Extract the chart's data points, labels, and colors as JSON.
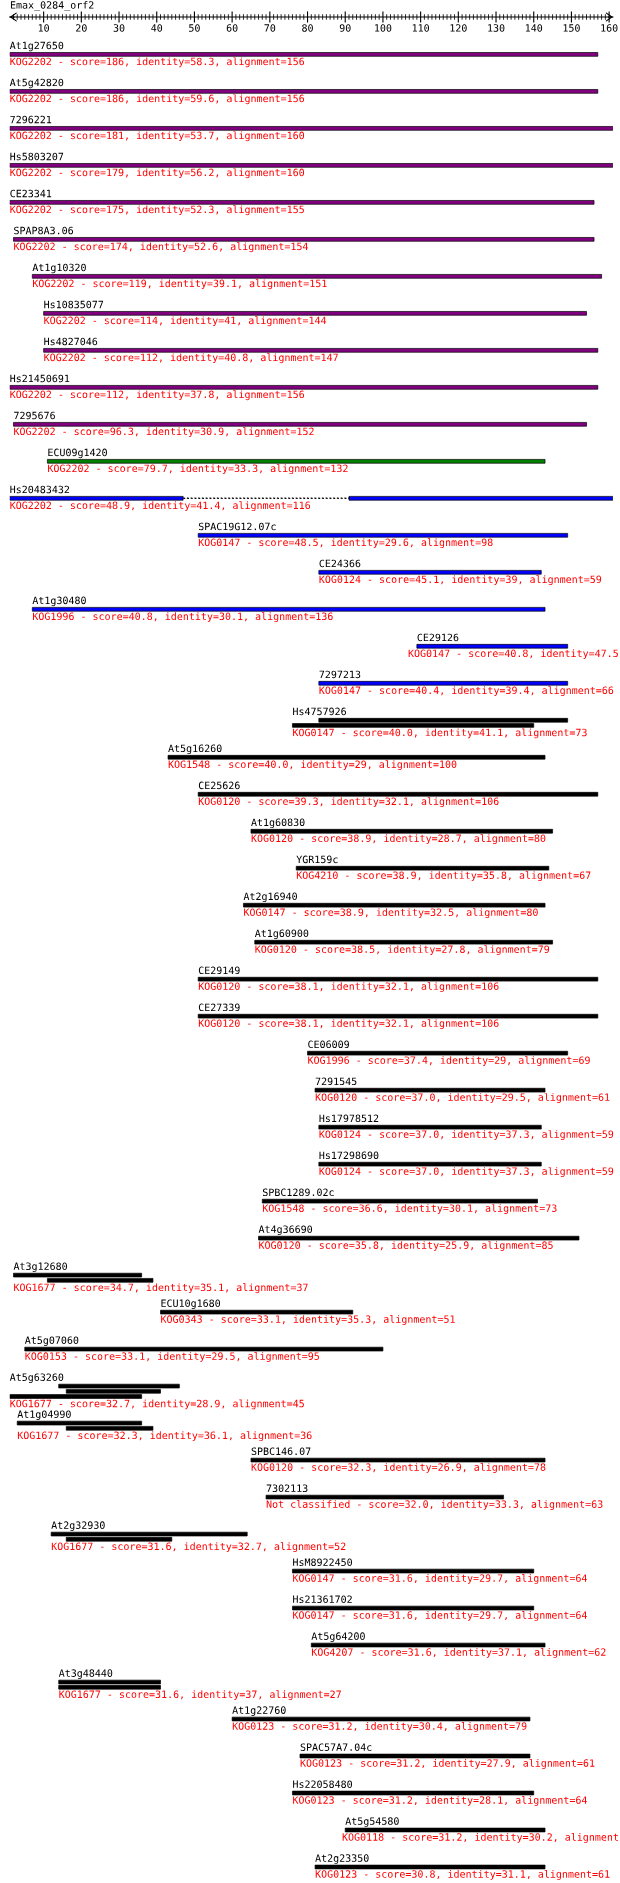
{
  "chart_data": {
    "type": "bar",
    "orientation": "horizontal",
    "title": "Emax_0284_orf2",
    "categories": [
      "At1g27650",
      "At5g42820",
      "7296221",
      "Hs5803207",
      "CE23341",
      "SPAP8A3.06",
      "At1g10320",
      "Hs10835077",
      "Hs4827046",
      "Hs21450691",
      "7295676",
      "ECU09g1420",
      "Hs20483432",
      "SPAC19G12.07c",
      "CE24366",
      "At1g30480",
      "CE29126",
      "7297213",
      "Hs4757926",
      "At5g16260",
      "CE25626",
      "At1g60830",
      "YGR159c",
      "At2g16940",
      "At1g60900",
      "CE29149",
      "CE27339",
      "CE06009",
      "7291545",
      "Hs17978512",
      "Hs17298690",
      "SPBC1289.02c",
      "At4g36690",
      "At3g12680",
      "ECU10g1680",
      "At5g07060",
      "At5g63260",
      "At1g04990",
      "SPBC146.07",
      "7302113",
      "At2g32930",
      "HsM8922450",
      "Hs21361702",
      "At5g64200",
      "At3g48440",
      "At1g22760",
      "SPAC57A7.04c",
      "Hs22058480",
      "At5g54580",
      "At2g23350"
    ],
    "xlim": [
      1,
      161
    ],
    "xticks": [
      {
        "value": 2,
        "label": null
      },
      {
        "value": 3,
        "label": null
      },
      {
        "value": 4,
        "label": null
      },
      {
        "value": 5,
        "label": null
      },
      {
        "value": 6,
        "label": null
      },
      {
        "value": 7,
        "label": null
      },
      {
        "value": 8,
        "label": null
      },
      {
        "value": 9,
        "label": null
      },
      10,
      {
        "value": 11,
        "label": null
      },
      {
        "value": 12,
        "label": null
      },
      {
        "value": 13,
        "label": null
      },
      {
        "value": 14,
        "label": null
      },
      {
        "value": 15,
        "label": null
      },
      {
        "value": 16,
        "label": null
      },
      {
        "value": 17,
        "label": null
      },
      {
        "value": 18,
        "label": null
      },
      {
        "value": 19,
        "label": null
      },
      20,
      {
        "value": 21,
        "label": null
      },
      {
        "value": 22,
        "label": null
      },
      {
        "value": 23,
        "label": null
      },
      {
        "value": 24,
        "label": null
      },
      {
        "value": 25,
        "label": null
      },
      {
        "value": 26,
        "label": null
      },
      {
        "value": 27,
        "label": null
      },
      {
        "value": 28,
        "label": null
      },
      {
        "value": 29,
        "label": null
      },
      30,
      {
        "value": 31,
        "label": null
      },
      {
        "value": 32,
        "label": null
      },
      {
        "value": 33,
        "label": null
      },
      {
        "value": 34,
        "label": null
      },
      {
        "value": 35,
        "label": null
      },
      {
        "value": 36,
        "label": null
      },
      {
        "value": 37,
        "label": null
      },
      {
        "value": 38,
        "label": null
      },
      {
        "value": 39,
        "label": null
      },
      40,
      {
        "value": 41,
        "label": null
      },
      {
        "value": 42,
        "label": null
      },
      {
        "value": 43,
        "label": null
      },
      {
        "value": 44,
        "label": null
      },
      {
        "value": 45,
        "label": null
      },
      {
        "value": 46,
        "label": null
      },
      {
        "value": 47,
        "label": null
      },
      {
        "value": 48,
        "label": null
      },
      {
        "value": 49,
        "label": null
      },
      50,
      {
        "value": 51,
        "label": null
      },
      {
        "value": 52,
        "label": null
      },
      {
        "value": 53,
        "label": null
      },
      {
        "value": 54,
        "label": null
      },
      {
        "value": 55,
        "label": null
      },
      {
        "value": 56,
        "label": null
      },
      {
        "value": 57,
        "label": null
      },
      {
        "value": 58,
        "label": null
      },
      {
        "value": 59,
        "label": null
      },
      60,
      {
        "value": 61,
        "label": null
      },
      {
        "value": 62,
        "label": null
      },
      {
        "value": 63,
        "label": null
      },
      {
        "value": 64,
        "label": null
      },
      {
        "value": 65,
        "label": null
      },
      {
        "value": 66,
        "label": null
      },
      {
        "value": 67,
        "label": null
      },
      {
        "value": 68,
        "label": null
      },
      {
        "value": 69,
        "label": null
      },
      70,
      {
        "value": 71,
        "label": null
      },
      {
        "value": 72,
        "label": null
      },
      {
        "value": 73,
        "label": null
      },
      {
        "value": 74,
        "label": null
      },
      {
        "value": 75,
        "label": null
      },
      {
        "value": 76,
        "label": null
      },
      {
        "value": 77,
        "label": null
      },
      {
        "value": 78,
        "label": null
      },
      {
        "value": 79,
        "label": null
      },
      80,
      {
        "value": 81,
        "label": null
      },
      {
        "value": 82,
        "label": null
      },
      {
        "value": 83,
        "label": null
      },
      {
        "value": 84,
        "label": null
      },
      {
        "value": 85,
        "label": null
      },
      {
        "value": 86,
        "label": null
      },
      {
        "value": 87,
        "label": null
      },
      {
        "value": 88,
        "label": null
      },
      {
        "value": 89,
        "label": null
      },
      90,
      {
        "value": 91,
        "label": null
      },
      {
        "value": 92,
        "label": null
      },
      {
        "value": 93,
        "label": null
      },
      {
        "value": 94,
        "label": null
      },
      {
        "value": 95,
        "label": null
      },
      {
        "value": 96,
        "label": null
      },
      {
        "value": 97,
        "label": null
      },
      {
        "value": 98,
        "label": null
      },
      {
        "value": 99,
        "label": null
      },
      100,
      {
        "value": 101,
        "label": null
      },
      {
        "value": 102,
        "label": null
      },
      {
        "value": 103,
        "label": null
      },
      {
        "value": 104,
        "label": null
      },
      {
        "value": 105,
        "label": null
      },
      {
        "value": 106,
        "label": null
      },
      {
        "value": 107,
        "label": null
      },
      {
        "value": 108,
        "label": null
      },
      {
        "value": 109,
        "label": null
      },
      110,
      {
        "value": 111,
        "label": null
      },
      {
        "value": 112,
        "label": null
      },
      {
        "value": 113,
        "label": null
      },
      {
        "value": 114,
        "label": null
      },
      {
        "value": 115,
        "label": null
      },
      {
        "value": 116,
        "label": null
      },
      {
        "value": 117,
        "label": null
      },
      {
        "value": 118,
        "label": null
      },
      {
        "value": 119,
        "label": null
      },
      120,
      {
        "value": 121,
        "label": null
      },
      {
        "value": 122,
        "label": null
      },
      {
        "value": 123,
        "label": null
      },
      {
        "value": 124,
        "label": null
      },
      {
        "value": 125,
        "label": null
      },
      {
        "value": 126,
        "label": null
      },
      {
        "value": 127,
        "label": null
      },
      {
        "value": 128,
        "label": null
      },
      {
        "value": 129,
        "label": null
      },
      130,
      {
        "value": 131,
        "label": null
      },
      {
        "value": 132,
        "label": null
      },
      {
        "value": 133,
        "label": null
      },
      {
        "value": 134,
        "label": null
      },
      {
        "value": 135,
        "label": null
      },
      {
        "value": 136,
        "label": null
      },
      {
        "value": 137,
        "label": null
      },
      {
        "value": 138,
        "label": null
      },
      {
        "value": 139,
        "label": null
      },
      140,
      {
        "value": 141,
        "label": null
      },
      {
        "value": 142,
        "label": null
      },
      {
        "value": 143,
        "label": null
      },
      {
        "value": 144,
        "label": null
      },
      {
        "value": 145,
        "label": null
      },
      {
        "value": 146,
        "label": null
      },
      {
        "value": 147,
        "label": null
      },
      {
        "value": 148,
        "label": null
      },
      {
        "value": 149,
        "label": null
      },
      150,
      {
        "value": 151,
        "label": null
      },
      {
        "value": 152,
        "label": null
      },
      {
        "value": 153,
        "label": null
      },
      {
        "value": 154,
        "label": null
      },
      {
        "value": 155,
        "label": null
      },
      {
        "value": 156,
        "label": null
      },
      {
        "value": 157,
        "label": null
      },
      {
        "value": 158,
        "label": null
      },
      {
        "value": 159,
        "label": null
      },
      160
    ],
    "series": [
      {
        "base": [
          1,
          1,
          1,
          1,
          1,
          2,
          7,
          10,
          10,
          1,
          2,
          11,
          1,
          51,
          83,
          7,
          109,
          83,
          83,
          43,
          51,
          65,
          77,
          63,
          66,
          51,
          51,
          80,
          82,
          83,
          83,
          68,
          67,
          2,
          41,
          5,
          14,
          3,
          65,
          69,
          12,
          76,
          76,
          81,
          14,
          60,
          78,
          76,
          90,
          82
        ],
        "values": [
          156,
          156,
          160,
          160,
          155,
          154,
          151,
          144,
          147,
          156,
          152,
          132,
          46,
          98,
          59,
          136,
          40,
          66,
          66,
          100,
          106,
          80,
          67,
          80,
          79,
          106,
          106,
          69,
          61,
          59,
          59,
          73,
          85,
          34,
          51,
          95,
          32,
          33,
          78,
          63,
          52,
          64,
          64,
          62,
          27,
          79,
          61,
          64,
          53,
          61
        ],
        "colors": [
          "#800080",
          "#800080",
          "#800080",
          "#800080",
          "#800080",
          "#800080",
          "#800080",
          "#800080",
          "#800080",
          "#800080",
          "#800080",
          "#008000",
          "#0000ff",
          "#0000ff",
          "#0000ff",
          "#0000ff",
          "#0000ff",
          "#0000ff",
          "#000000",
          "#000000",
          "#000000",
          "#000000",
          "#000000",
          "#000000",
          "#000000",
          "#000000",
          "#000000",
          "#000000",
          "#000000",
          "#000000",
          "#000000",
          "#000000",
          "#000000",
          "#000000",
          "#000000",
          "#000000",
          "#000000",
          "#000000",
          "#000000",
          "#000000",
          "#000000",
          "#000000",
          "#000000",
          "#000000",
          "#000000",
          "#000000",
          "#000000",
          "#000000",
          "#000000",
          "#000000"
        ],
        "value_labels": [
          "KOG2202 - score=186, identity=58.3, alignment=156",
          "KOG2202 - score=186, identity=59.6, alignment=156",
          "KOG2202 - score=181, identity=53.7, alignment=160",
          "KOG2202 - score=179, identity=56.2, alignment=160",
          "KOG2202 - score=175, identity=52.3, alignment=155",
          "KOG2202 - score=174, identity=52.6, alignment=154",
          "KOG2202 - score=119, identity=39.1, alignment=151",
          "KOG2202 - score=114, identity=41, alignment=144",
          "KOG2202 - score=112, identity=40.8, alignment=147",
          "KOG2202 - score=112, identity=37.8, alignment=156",
          "KOG2202 - score=96.3, identity=30.9, alignment=152",
          "KOG2202 - score=79.7, identity=33.3, alignment=132",
          "KOG2202 - score=48.9, identity=41.4, alignment=116",
          "KOG0147 - score=48.5, identity=29.6, alignment=98",
          "KOG0124 - score=45.1, identity=39, alignment=59",
          "KOG1996 - score=40.8, identity=30.1, alignment=136",
          "KOG0147 - score=40.8, identity=47.5",
          "KOG0147 - score=40.4, identity=39.4, alignment=66",
          null,
          "KOG1548 - score=40.0, identity=29, alignment=100",
          "KOG0120 - score=39.3, identity=32.1, alignment=106",
          "KOG0120 - score=38.9, identity=28.7, alignment=80",
          "KOG4210 - score=38.9, identity=35.8, alignment=67",
          "KOG0147 - score=38.9, identity=32.5, alignment=80",
          "KOG0120 - score=38.5, identity=27.8, alignment=79",
          "KOG0120 - score=38.1, identity=32.1, alignment=106",
          "KOG0120 - score=38.1, identity=32.1, alignment=106",
          "KOG1996 - score=37.4, identity=29, alignment=69",
          "KOG0120 - score=37.0, identity=29.5, alignment=61",
          "KOG0124 - score=37.0, identity=37.3, alignment=59",
          "KOG0124 - score=37.0, identity=37.3, alignment=59",
          "KOG1548 - score=36.6, identity=30.1, alignment=73",
          "KOG0120 - score=35.8, identity=25.9, alignment=85",
          null,
          "KOG0343 - score=33.1, identity=35.3, alignment=51",
          "KOG0153 - score=33.1, identity=29.5, alignment=95",
          null,
          null,
          "KOG0120 - score=32.3, identity=26.9, alignment=78",
          "Not classified - score=32.0, identity=33.3, alignment=63",
          null,
          "KOG0147 - score=31.6, identity=29.7, alignment=64",
          "KOG0147 - score=31.6, identity=29.7, alignment=64",
          "KOG4207 - score=31.6, identity=37.1, alignment=62",
          null,
          "KOG0123 - score=31.2, identity=30.4, alignment=79",
          "KOG0123 - score=31.2, identity=27.9, alignment=61",
          "KOG0123 - score=31.2, identity=28.1, alignment=64",
          "KOG0118 - score=31.2, identity=30.2, alignment",
          "KOG0123 - score=30.8, identity=31.1, alignment=61"
        ]
      },
      {
        "base": [
          null,
          null,
          null,
          null,
          null,
          null,
          null,
          null,
          null,
          null,
          null,
          null,
          91,
          null,
          null,
          null,
          null,
          null,
          76,
          null,
          null,
          null,
          null,
          null,
          null,
          null,
          null,
          null,
          null,
          null,
          null,
          null,
          null,
          11,
          null,
          null,
          16,
          16,
          null,
          null,
          16,
          null,
          null,
          null,
          14,
          null,
          null,
          null,
          null,
          null
        ],
        "values": [
          null,
          null,
          null,
          null,
          null,
          null,
          null,
          null,
          null,
          null,
          null,
          null,
          70,
          null,
          null,
          null,
          null,
          null,
          64,
          null,
          null,
          null,
          null,
          null,
          null,
          null,
          null,
          null,
          null,
          null,
          null,
          null,
          null,
          28,
          null,
          null,
          25,
          23,
          null,
          null,
          28,
          null,
          null,
          null,
          27,
          null,
          null,
          null,
          null,
          null
        ],
        "colors": [
          null,
          null,
          null,
          null,
          null,
          null,
          null,
          null,
          null,
          null,
          null,
          null,
          "#0000ff",
          null,
          null,
          null,
          null,
          null,
          "#000000",
          null,
          null,
          null,
          null,
          null,
          null,
          null,
          null,
          null,
          null,
          null,
          null,
          null,
          null,
          "#000000",
          null,
          null,
          "#000000",
          "#000000",
          null,
          null,
          "#000000",
          null,
          null,
          null,
          "#000000",
          null,
          null,
          null,
          null,
          null
        ],
        "value_labels": [
          null,
          null,
          null,
          null,
          null,
          null,
          null,
          null,
          null,
          null,
          null,
          null,
          null,
          null,
          null,
          null,
          null,
          null,
          "KOG0147 - score=40.0, identity=41.1, alignment=73",
          null,
          null,
          null,
          null,
          null,
          null,
          null,
          null,
          null,
          null,
          null,
          null,
          null,
          null,
          "KOG1677 - score=34.7, identity=35.1, alignment=37",
          null,
          null,
          null,
          "KOG1677 - score=32.3, identity=36.1, alignment=36",
          null,
          null,
          "KOG1677 - score=31.6, identity=32.7, alignment=52",
          null,
          null,
          null,
          "KOG1677 - score=31.6, identity=37, alignment=27",
          null,
          null,
          null,
          null,
          null
        ]
      },
      {
        "base": [
          null,
          null,
          null,
          null,
          null,
          null,
          null,
          null,
          null,
          null,
          null,
          null,
          null,
          null,
          null,
          null,
          null,
          null,
          null,
          null,
          null,
          null,
          null,
          null,
          null,
          null,
          null,
          null,
          null,
          null,
          null,
          null,
          null,
          null,
          null,
          null,
          1,
          null,
          null,
          null,
          null,
          null,
          null,
          null,
          null,
          null,
          null,
          null,
          null,
          null
        ],
        "values": [
          null,
          null,
          null,
          null,
          null,
          null,
          null,
          null,
          null,
          null,
          null,
          null,
          null,
          null,
          null,
          null,
          null,
          null,
          null,
          null,
          null,
          null,
          null,
          null,
          null,
          null,
          null,
          null,
          null,
          null,
          null,
          null,
          null,
          null,
          null,
          null,
          35,
          null,
          null,
          null,
          null,
          null,
          null,
          null,
          null,
          null,
          null,
          null,
          null,
          null
        ],
        "colors": [
          null,
          null,
          null,
          null,
          null,
          null,
          null,
          null,
          null,
          null,
          null,
          null,
          null,
          null,
          null,
          null,
          null,
          null,
          null,
          null,
          null,
          null,
          null,
          null,
          null,
          null,
          null,
          null,
          null,
          null,
          null,
          null,
          null,
          null,
          null,
          null,
          "#000000",
          null,
          null,
          null,
          null,
          null,
          null,
          null,
          null,
          null,
          null,
          null,
          null,
          null
        ],
        "value_labels": [
          null,
          null,
          null,
          null,
          null,
          null,
          null,
          null,
          null,
          null,
          null,
          null,
          null,
          null,
          null,
          null,
          null,
          null,
          null,
          null,
          null,
          null,
          null,
          null,
          null,
          null,
          null,
          null,
          null,
          null,
          null,
          null,
          null,
          null,
          null,
          null,
          "KOG1677 - score=32.7, identity=28.9, alignment=45",
          null,
          null,
          null,
          null,
          null,
          null,
          null,
          null,
          null,
          null,
          null,
          null,
          null
        ]
      },
      {
        "line_style": "dotted",
        "color": "#000000",
        "base": [
          null,
          null,
          null,
          null,
          null,
          null,
          null,
          null,
          null,
          null,
          null,
          null,
          47,
          null,
          null,
          null,
          null,
          null,
          null,
          null,
          null,
          null,
          null,
          null,
          null,
          null,
          null,
          null,
          null,
          null,
          null,
          null,
          null,
          null,
          null,
          null,
          null,
          null,
          null,
          null,
          null,
          null,
          null,
          null,
          null,
          null,
          null,
          null,
          null,
          null
        ],
        "values": [
          null,
          null,
          null,
          null,
          null,
          null,
          null,
          null,
          null,
          null,
          null,
          null,
          44,
          null,
          null,
          null,
          null,
          null,
          null,
          null,
          null,
          null,
          null,
          null,
          null,
          null,
          null,
          null,
          null,
          null,
          null,
          null,
          null,
          null,
          null,
          null,
          null,
          null,
          null,
          null,
          null,
          null,
          null,
          null,
          null,
          null,
          null,
          null,
          null,
          null
        ]
      }
    ]
  }
}
